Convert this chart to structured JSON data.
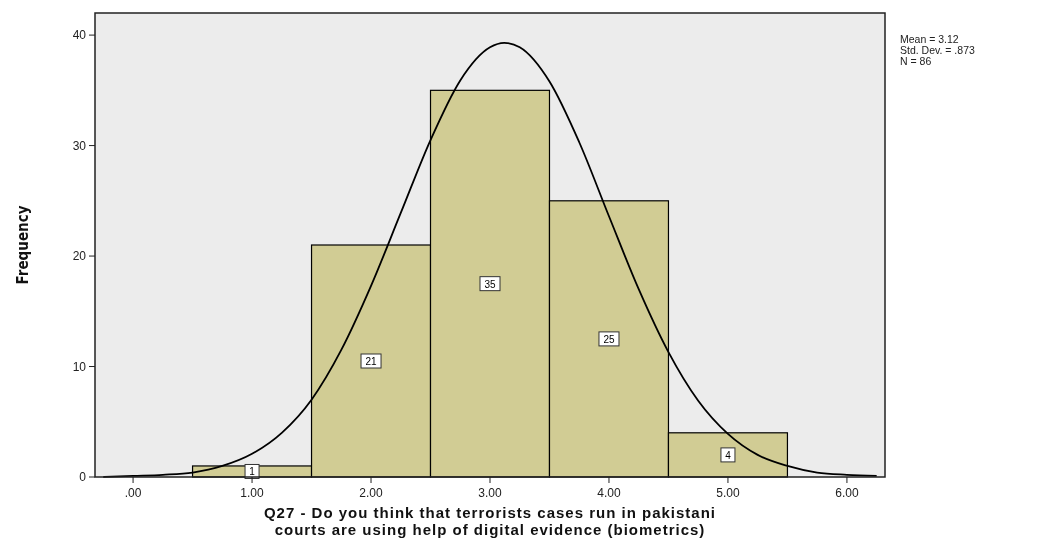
{
  "chart_data": {
    "type": "histogram",
    "xlabel": "Q27 - Do you think that terrorists cases run in pakistani courts are using help of digital evidence (biometrics)",
    "ylabel": "Frequency",
    "annotations": [
      "Mean = 3.12",
      "Std. Dev. = .873",
      "N = 86"
    ],
    "series": [
      {
        "color": "#d1cc94",
        "bins": [
          0.5,
          1.5,
          2.5,
          3.5,
          4.5,
          5.5
        ],
        "values": [
          1,
          21,
          35,
          25,
          4
        ],
        "value_labels": [
          "1",
          "21",
          "35",
          "25",
          "4"
        ]
      },
      {
        "type": "line",
        "color": "#000000",
        "x": [
          -0.25,
          0,
          0.25,
          0.5,
          0.75,
          1,
          1.25,
          1.5,
          1.75,
          2,
          2.25,
          2.5,
          2.75,
          3,
          3.12,
          3.25,
          3.5,
          3.75,
          4,
          4.25,
          4.5,
          4.75,
          5,
          5.25,
          5.5,
          5.75,
          6,
          6.25
        ],
        "values": [
          0,
          0.1,
          0.2,
          0.4,
          1,
          2.1,
          4,
          7,
          11.5,
          17.3,
          23.9,
          30.5,
          35.9,
          38.9,
          39.3,
          38.9,
          35.8,
          30.3,
          23.6,
          17,
          11.3,
          6.9,
          3.9,
          2,
          1,
          0.4,
          0.2,
          0.1
        ]
      }
    ],
    "marker": "none",
    "grid": false,
    "xlim": [
      -0.32,
      6.32
    ],
    "ylim": [
      0,
      42
    ],
    "xticks": [
      {
        "value": 0,
        "label": ".00"
      },
      {
        "value": 1,
        "label": "1.00"
      },
      {
        "value": 2,
        "label": "2.00"
      },
      {
        "value": 3,
        "label": "3.00"
      },
      {
        "value": 4,
        "label": "4.00"
      },
      {
        "value": 5,
        "label": "5.00"
      },
      {
        "value": 6,
        "label": "6.00"
      }
    ],
    "yticks": [
      0,
      10,
      20,
      30,
      40
    ]
  }
}
